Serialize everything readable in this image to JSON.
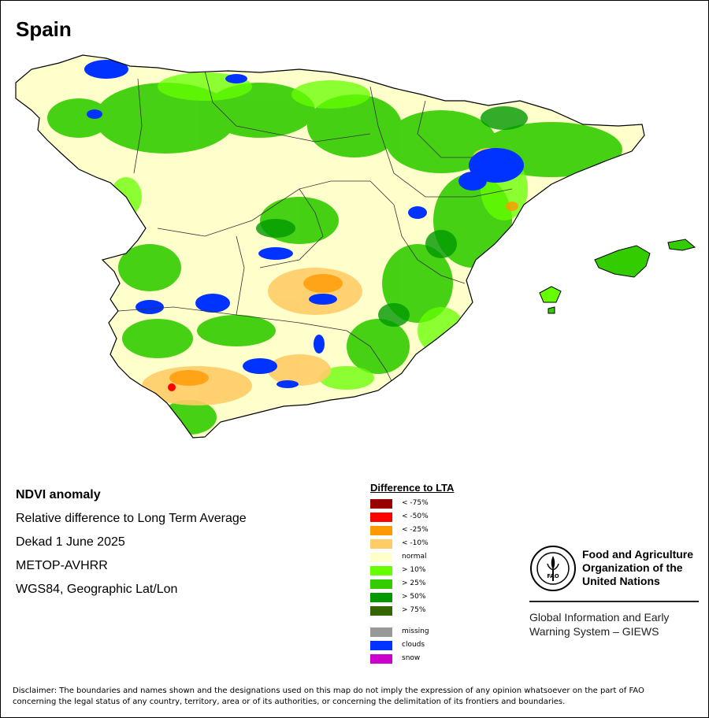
{
  "map": {
    "title": "Spain",
    "info_lines": [
      "NDVI anomaly",
      "Relative difference to Long Term Average",
      "Dekad 1 June 2025",
      "METOP-AVHRR",
      "WGS84, Geographic Lat/Lon"
    ]
  },
  "legend": {
    "title": "Difference to LTA",
    "items": [
      {
        "label": "< -75%",
        "color": "#990000"
      },
      {
        "label": "< -50%",
        "color": "#ff0000"
      },
      {
        "label": "< -25%",
        "color": "#ff9900"
      },
      {
        "label": "< -10%",
        "color": "#ffcc66"
      },
      {
        "label": "normal",
        "color": "#ffffcc"
      },
      {
        "label": "> 10%",
        "color": "#66ff00"
      },
      {
        "label": "> 25%",
        "color": "#33cc00"
      },
      {
        "label": "> 50%",
        "color": "#009900"
      },
      {
        "label": "> 75%",
        "color": "#336600"
      }
    ],
    "extra_items": [
      {
        "label": "missing",
        "color": "#999999"
      },
      {
        "label": "clouds",
        "color": "#0033ff"
      },
      {
        "label": "snow",
        "color": "#cc00cc"
      }
    ]
  },
  "organization": {
    "name_line1": "Food and Agriculture",
    "name_line2": "Organization of the",
    "name_line3": "United Nations",
    "logo_text": "FAO",
    "logo_motto": "FIAT PANIS",
    "system_line1": "Global Information and Early",
    "system_line2": "Warning System – GIEWS"
  },
  "disclaimer": {
    "line1": "Disclaimer: The boundaries and names shown and the designations used on this map do not imply the expression of any opinion whatsoever on the part of FAO",
    "line2": "concerning the legal status of any country, territory, area or of its authorities, or concerning the delimitation of its frontiers and boundaries."
  }
}
